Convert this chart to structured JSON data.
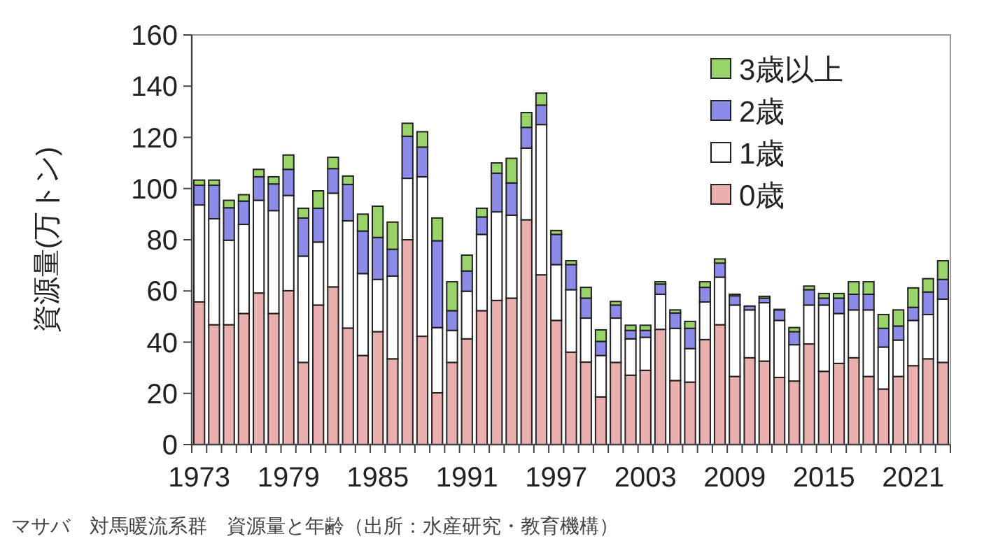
{
  "chart_data": {
    "type": "bar",
    "stacked": true,
    "ylabel": "資源量(万トン)",
    "annotations": [
      "マサバ　対馬暖流系群　資源量と年齢（出所：水産研究・教育機構）"
    ],
    "categories": [
      "1973",
      null,
      null,
      null,
      null,
      null,
      "1979",
      null,
      null,
      null,
      null,
      null,
      "1985",
      null,
      null,
      null,
      null,
      null,
      "1991",
      null,
      null,
      null,
      null,
      null,
      "1997",
      null,
      null,
      null,
      null,
      null,
      "2003",
      null,
      null,
      null,
      null,
      null,
      "2009",
      null,
      null,
      null,
      null,
      null,
      "2015",
      null,
      null,
      null,
      null,
      null,
      "2021",
      null,
      null
    ],
    "ylim": [
      0,
      160
    ],
    "yticks": [
      0,
      20,
      40,
      60,
      80,
      100,
      120,
      140,
      160
    ],
    "legend": "top right",
    "grid": false,
    "series": [
      {
        "name": "0歳",
        "color": "#eab0b0",
        "values": [
          55.7,
          46.8,
          46.8,
          51.2,
          59.2,
          51.2,
          60.1,
          32.1,
          54.5,
          61.6,
          45.5,
          34.8,
          44.1,
          33.5,
          80.0,
          42.3,
          20.2,
          32.1,
          41.3,
          52.3,
          56.3,
          57.2,
          87.8,
          66.3,
          48.5,
          36.1,
          32.2,
          18.6,
          32.1,
          27.1,
          29.0,
          45.0,
          25.0,
          24.4,
          41.0,
          46.8,
          26.6,
          33.9,
          32.6,
          26.2,
          24.8,
          39.3,
          28.6,
          31.7,
          33.9,
          26.6,
          21.7,
          26.6,
          30.8,
          33.5,
          32.1
        ]
      },
      {
        "name": "1歳",
        "color": "#ffffff",
        "values": [
          37.9,
          41.4,
          33.0,
          34.8,
          36.2,
          40.2,
          37.2,
          41.5,
          24.6,
          36.6,
          41.9,
          32.0,
          20.4,
          32.3,
          24.0,
          62.3,
          25.5,
          12.5,
          18.6,
          29.8,
          34.6,
          32.4,
          28.0,
          58.7,
          21.8,
          24.4,
          17.2,
          16.2,
          17.3,
          14.2,
          12.9,
          13.7,
          20.4,
          13.1,
          14.7,
          18.6,
          27.9,
          18.7,
          22.8,
          22.3,
          14.2,
          15.2,
          25.9,
          19.5,
          18.7,
          26.0,
          16.4,
          14.2,
          17.7,
          17.3,
          24.7
        ]
      },
      {
        "name": "2歳",
        "color": "#8c8ce8",
        "values": [
          7.7,
          13.1,
          12.7,
          9.1,
          9.2,
          10.4,
          10.2,
          14.9,
          13.2,
          9.6,
          14.2,
          16.6,
          16.4,
          10.5,
          16.4,
          11.6,
          33.9,
          7.7,
          7.9,
          6.8,
          15.1,
          12.6,
          8.1,
          7.6,
          11.8,
          9.8,
          7.8,
          5.5,
          5.1,
          3.3,
          2.7,
          4.0,
          6.0,
          7.9,
          5.7,
          5.5,
          3.6,
          1.5,
          1.8,
          4.1,
          5.1,
          6.0,
          2.7,
          6.0,
          6.1,
          6.1,
          7.3,
          5.5,
          5.1,
          8.8,
          7.7
        ]
      },
      {
        "name": "3歳以上",
        "color": "#9bd36b",
        "values": [
          2.0,
          2.0,
          2.9,
          2.5,
          2.9,
          2.8,
          5.6,
          3.8,
          6.8,
          4.4,
          3.3,
          6.6,
          12.2,
          10.6,
          5.1,
          6.0,
          8.9,
          11.3,
          6.2,
          3.4,
          4.0,
          9.6,
          5.8,
          4.7,
          1.5,
          1.5,
          4.2,
          4.5,
          1.4,
          2.0,
          2.0,
          0.9,
          1.2,
          2.7,
          2.2,
          1.6,
          0.6,
          null,
          0.7,
          0.2,
          1.6,
          1.4,
          1.8,
          1.8,
          4.9,
          4.9,
          5.4,
          6.3,
          7.6,
          5.2,
          7.3
        ]
      }
    ]
  }
}
